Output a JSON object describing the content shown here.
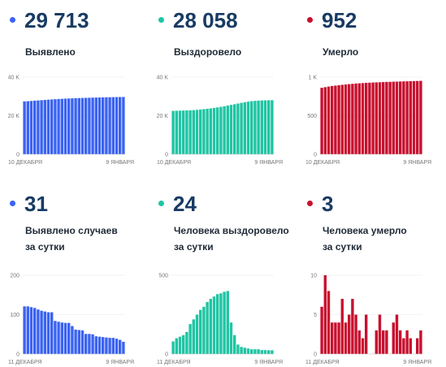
{
  "colors": {
    "blue": "#3b63f2",
    "teal": "#1fc5a3",
    "red": "#c8102e"
  },
  "panels": [
    {
      "value": "29 713",
      "label": "Выявлено",
      "label2": "",
      "color": "blue"
    },
    {
      "value": "28 058",
      "label": "Выздоровело",
      "label2": "",
      "color": "teal"
    },
    {
      "value": "952",
      "label": "Умерло",
      "label2": "",
      "color": "red"
    },
    {
      "value": "31",
      "label": "Выявлено случаев",
      "label2": "за сутки",
      "color": "blue"
    },
    {
      "value": "24",
      "label": "Человека выздоровело",
      "label2": "за сутки",
      "color": "teal"
    },
    {
      "value": "3",
      "label": "Человека умерло",
      "label2": "за сутки",
      "color": "red"
    }
  ],
  "chart_data": [
    {
      "type": "bar",
      "series_color": "blue",
      "x_start": "10 ДЕКАБРЯ",
      "x_end": "9 ЯНВАРЯ",
      "yticks": [
        "0",
        "20 K",
        "40 K"
      ],
      "ylim": [
        0,
        40000
      ],
      "values": [
        27400,
        27530,
        27660,
        27790,
        27920,
        28050,
        28180,
        28310,
        28440,
        28560,
        28670,
        28770,
        28860,
        28940,
        29010,
        29080,
        29150,
        29210,
        29270,
        29320,
        29370,
        29420,
        29470,
        29520,
        29560,
        29600,
        29630,
        29660,
        29690,
        29713
      ]
    },
    {
      "type": "bar",
      "series_color": "teal",
      "x_start": "10 ДЕКАБРЯ",
      "x_end": "9 ЯНВАРЯ",
      "yticks": [
        "0",
        "20 K",
        "40 K"
      ],
      "ylim": [
        0,
        40000
      ],
      "values": [
        22500,
        22560,
        22620,
        22680,
        22740,
        22800,
        22900,
        23050,
        23200,
        23400,
        23600,
        23800,
        24050,
        24300,
        24600,
        24900,
        25250,
        25600,
        25950,
        26300,
        26650,
        27000,
        27300,
        27550,
        27700,
        27820,
        27910,
        27970,
        28020,
        28058
      ]
    },
    {
      "type": "bar",
      "series_color": "red",
      "x_start": "10 ДЕКАБРЯ",
      "x_end": "9 ЯНВАРЯ",
      "yticks": [
        "0",
        "500",
        "1 K"
      ],
      "ylim": [
        0,
        1000
      ],
      "values": [
        862,
        870,
        878,
        885,
        890,
        895,
        900,
        905,
        909,
        913,
        917,
        920,
        923,
        926,
        928,
        930,
        932,
        934,
        936,
        938,
        939,
        941,
        942,
        944,
        945,
        946,
        948,
        949,
        950,
        952
      ]
    },
    {
      "type": "bar",
      "series_color": "blue",
      "x_start": "11 ДЕКАБРЯ",
      "x_end": "9 ЯНВАРЯ",
      "yticks": [
        "0",
        "100",
        "200"
      ],
      "ylim": [
        0,
        200
      ],
      "values": [
        121,
        121,
        119,
        117,
        113,
        110,
        108,
        106,
        106,
        84,
        82,
        80,
        79,
        79,
        71,
        62,
        61,
        60,
        51,
        51,
        50,
        45,
        44,
        43,
        42,
        41,
        41,
        39,
        36,
        31
      ]
    },
    {
      "type": "bar",
      "series_color": "teal",
      "x_start": "11 ДЕКАБРЯ",
      "x_end": "9 ЯНВАРЯ",
      "yticks": [
        "0",
        "500"
      ],
      "ylim": [
        0,
        500
      ],
      "values": [
        80,
        100,
        110,
        120,
        140,
        190,
        220,
        250,
        280,
        300,
        330,
        350,
        365,
        380,
        385,
        395,
        400,
        200,
        120,
        60,
        45,
        40,
        35,
        30,
        30,
        30,
        25,
        25,
        24,
        24
      ]
    },
    {
      "type": "bar",
      "series_color": "red",
      "x_start": "11 ДЕКАБРЯ",
      "x_end": "9 ЯНВАРЯ",
      "yticks": [
        "0",
        "5",
        "10"
      ],
      "ylim": [
        0,
        10
      ],
      "values": [
        6,
        10,
        8,
        4,
        4,
        4,
        7,
        4,
        5,
        7,
        5,
        3,
        2,
        5,
        0,
        0,
        3,
        5,
        3,
        3,
        0,
        4,
        5,
        3,
        2,
        3,
        2,
        0,
        2,
        3
      ]
    }
  ]
}
